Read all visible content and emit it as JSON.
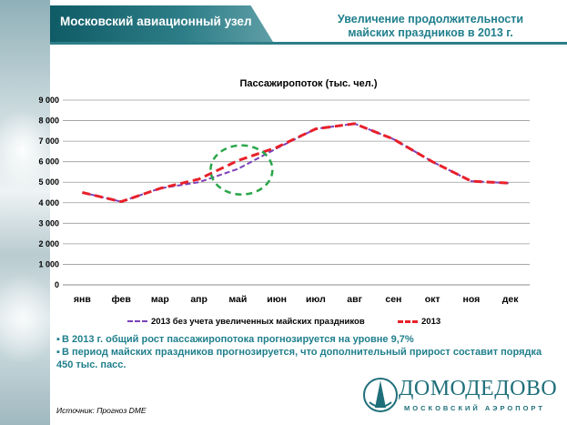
{
  "header": {
    "title": "Московский авиационный узел",
    "subtitle_line1": "Увеличение продолжительности",
    "subtitle_line2": "майских праздников в 2013 г."
  },
  "colors": {
    "accent": "#1f7f8c",
    "header_band": "#2d7e88",
    "series_baseline": "#7a40b8",
    "series_2013": "#e8202a",
    "highlight_ellipse": "#2aa64a"
  },
  "chart_data": {
    "type": "line",
    "title": "Пассажиропоток (тыс. чел.)",
    "xlabel": "",
    "ylabel": "",
    "categories": [
      "янв",
      "фев",
      "мар",
      "апр",
      "май",
      "июн",
      "июл",
      "авг",
      "сен",
      "окт",
      "ноя",
      "дек"
    ],
    "ylim": [
      0,
      9000
    ],
    "yticks": [
      0,
      1000,
      2000,
      3000,
      4000,
      5000,
      6000,
      7000,
      8000,
      9000
    ],
    "ytick_labels": [
      "0",
      "1 000",
      "2 000",
      "3 000",
      "4 000",
      "5 000",
      "6 000",
      "7 000",
      "8 000",
      "9 000"
    ],
    "grid": "horizontal",
    "legend_position": "bottom",
    "series": [
      {
        "name": "2013 без учета увеличенных майских праздников",
        "values": [
          4500,
          4050,
          4700,
          5000,
          5650,
          6650,
          7600,
          7850,
          7100,
          6000,
          5050,
          4950
        ]
      },
      {
        "name": "2013",
        "values": [
          4500,
          4050,
          4700,
          5150,
          6050,
          6700,
          7600,
          7850,
          7100,
          6000,
          5050,
          4950
        ]
      }
    ]
  },
  "bullets": [
    "В 2013 г. общий рост пассажиропотока прогнозируется на уровне 9,7%",
    "В период майских праздников прогнозируется, что дополнительный прирост составит порядка 450 тыс. пасс."
  ],
  "source": "Источник: Прогноз DME",
  "logo": {
    "name": "ДОМОДЕДОВО",
    "subtitle": "МОСКОВСКИЙ АЭРОПОРТ",
    "icon": "airport-tower-icon"
  }
}
